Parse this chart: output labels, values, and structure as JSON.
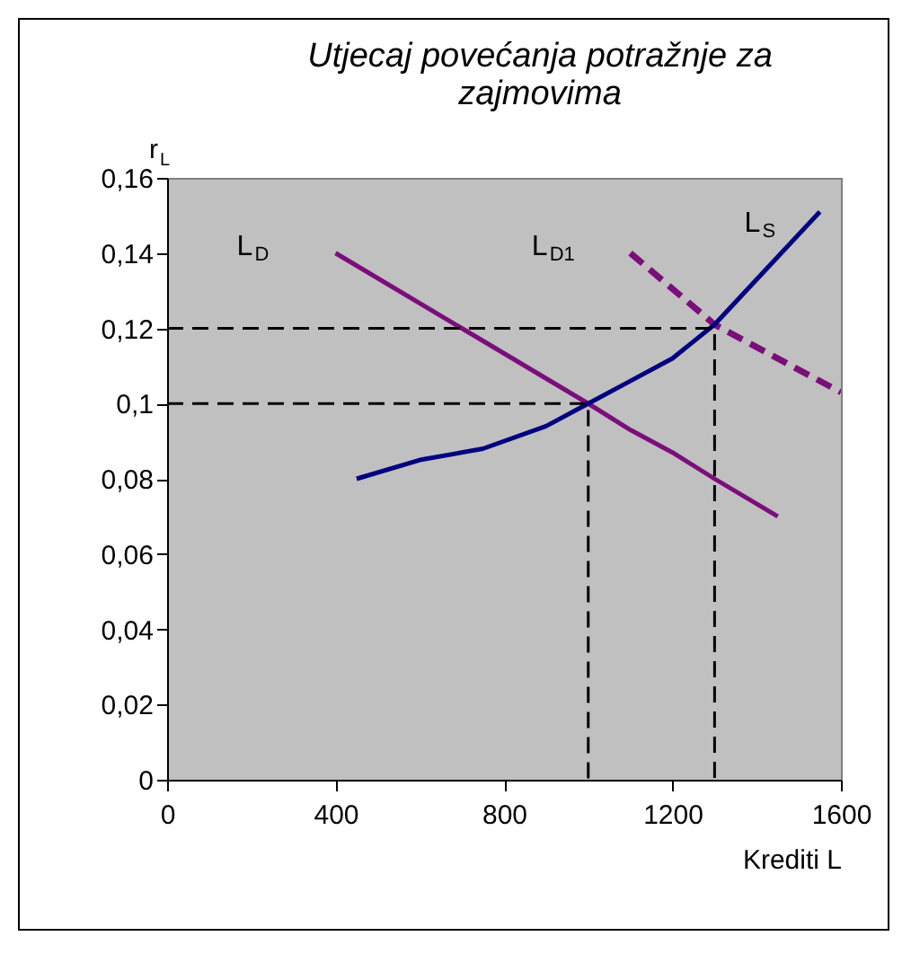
{
  "chart_data": {
    "type": "line",
    "title": "Utjecaj povećanja potražnje za zajmovima",
    "xlabel": "Krediti L",
    "ylabel": "r$_{L}$",
    "xlim": [
      0,
      1600
    ],
    "xticks": [
      0,
      400,
      800,
      1200,
      1600
    ],
    "ylim": [
      0,
      0.16
    ],
    "yticks": [
      0,
      {
        "value": 0.02,
        "label": "0,02"
      },
      {
        "value": 0.04,
        "label": "0,04"
      },
      {
        "value": 0.06,
        "label": "0,06"
      },
      {
        "value": 0.08,
        "label": "0,08"
      },
      {
        "value": 0.1,
        "label": "0,1"
      },
      {
        "value": 0.12,
        "label": "0,12"
      },
      {
        "value": 0.14,
        "label": "0,14"
      },
      {
        "value": 0.16,
        "label": "0,16"
      }
    ],
    "grid": false,
    "marker": "none",
    "series": [
      {
        "name": "L$_{D}$",
        "color": "#7b0e7b",
        "line_style": "solid",
        "x": [
          400,
          700,
          1000,
          1100,
          1200,
          1300,
          1450
        ],
        "values": [
          0.14,
          0.12,
          0.1,
          0.093,
          0.087,
          0.08,
          0.07
        ]
      },
      {
        "name": "L$_{D1}$",
        "color": "#7b0e7b",
        "line_style": "dashed",
        "x": [
          1100,
          1300,
          1600
        ],
        "values": [
          0.14,
          0.121,
          0.103
        ]
      },
      {
        "name": "L$_{S}$",
        "color": "#000080",
        "line_style": "solid",
        "x": [
          450,
          600,
          750,
          900,
          1000,
          1100,
          1200,
          1300,
          1400,
          1550
        ],
        "values": [
          0.08,
          0.085,
          0.088,
          0.094,
          0.1,
          0.106,
          0.112,
          0.121,
          0.133,
          0.151
        ]
      },
      {
        "color": "#000000",
        "line_style": "dashed",
        "x": [
          0,
          1000,
          1000
        ],
        "values": [
          0.1,
          0.1,
          0
        ]
      },
      {
        "color": "#000000",
        "line_style": "dashed",
        "x": [
          0,
          1300,
          1300
        ],
        "values": [
          0.12,
          0.12,
          0
        ]
      }
    ]
  }
}
